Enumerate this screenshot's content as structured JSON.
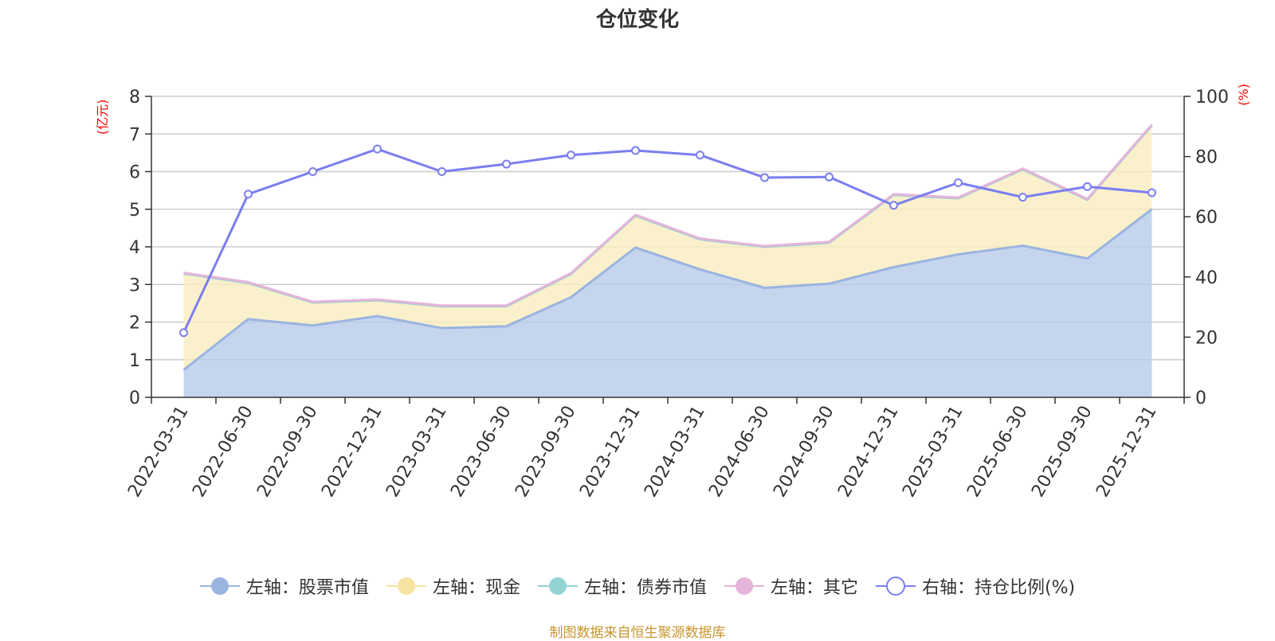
{
  "chart_data": {
    "type": "area",
    "title": "仓位变化",
    "left_axis": {
      "unit_label": "(亿元)",
      "ylim": [
        0,
        8
      ],
      "ticks": [
        "0",
        "1",
        "2",
        "3",
        "4",
        "5",
        "6",
        "7",
        "8"
      ]
    },
    "right_axis": {
      "unit_label": "(%)",
      "ylim": [
        0,
        100
      ],
      "ticks": [
        "0",
        "20",
        "40",
        "60",
        "80",
        "100"
      ]
    },
    "categories": [
      "2022-03-31",
      "2022-06-30",
      "2022-09-30",
      "2022-12-31",
      "2023-03-31",
      "2023-06-30",
      "2023-09-30",
      "2023-12-31",
      "2024-03-31",
      "2024-06-30",
      "2024-09-30",
      "2024-12-31",
      "2025-03-31",
      "2025-06-30",
      "2025-09-30",
      "2025-12-31"
    ],
    "series": [
      {
        "name": "左轴：股票市值",
        "axis": "left",
        "stack": true,
        "color": "#9ab4e0",
        "fill": "#b8cbea",
        "values": [
          0.73,
          2.08,
          1.91,
          2.16,
          1.84,
          1.89,
          2.66,
          3.98,
          3.4,
          2.91,
          3.02,
          3.46,
          3.8,
          4.03,
          3.69,
          5.0
        ]
      },
      {
        "name": "左轴：现金",
        "axis": "left",
        "stack": true,
        "color": "#f6e3a0",
        "fill": "#f9edbf",
        "values": [
          2.56,
          0.96,
          0.61,
          0.42,
          0.58,
          0.53,
          0.62,
          0.85,
          0.8,
          1.09,
          1.09,
          1.92,
          1.49,
          2.03,
          1.56,
          2.23
        ]
      },
      {
        "name": "左轴：债券市值",
        "axis": "left",
        "stack": true,
        "color": "#94d3d3",
        "fill": "#94d3d3",
        "values": [
          0,
          0,
          0,
          0,
          0,
          0,
          0,
          0,
          0,
          0,
          0,
          0,
          0,
          0,
          0,
          0
        ]
      },
      {
        "name": "左轴：其它",
        "axis": "left",
        "stack": true,
        "color": "#e5b4d9",
        "fill": "#e5b4d9",
        "values": [
          0.02,
          0.02,
          0.02,
          0.02,
          0.02,
          0.02,
          0.02,
          0.02,
          0.02,
          0.02,
          0.02,
          0.02,
          0.02,
          0.02,
          0.02,
          0.02
        ]
      },
      {
        "name": "右轴：持仓比例(%)",
        "axis": "right",
        "stack": false,
        "color": "#7b7ef0",
        "values": [
          21.5,
          67.5,
          75.0,
          82.5,
          75.0,
          77.5,
          80.5,
          82.0,
          80.5,
          73.0,
          73.2,
          63.8,
          71.3,
          66.5,
          70.0,
          68.0
        ]
      }
    ],
    "grid": true,
    "legend_position": "bottom"
  },
  "footer": {
    "source": "制图数据来自恒生聚源数据库"
  }
}
